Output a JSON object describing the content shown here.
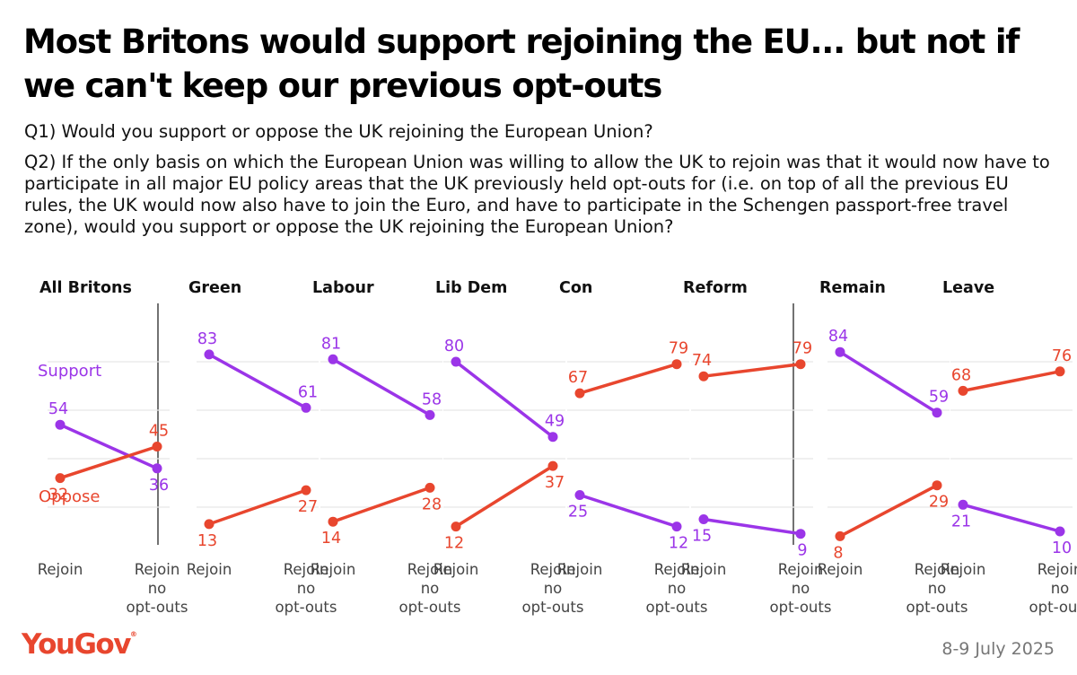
{
  "header": {
    "title": "Most Britons would support rejoining the EU... but not if we can't keep our previous opt-outs",
    "q1": "Q1) Would you support or oppose the UK rejoining the European Union?",
    "q2": "Q2) If the only basis on which the European Union was willing to allow the UK to rejoin was that it would now have to participate in all major EU policy areas that the UK previously held opt-outs for (i.e. on top of all the previous EU rules, the UK would now also have to join the Euro, and have to participate in the Schengen passport-free travel zone), would you support or oppose the UK rejoining the European Union?"
  },
  "footer": {
    "brand": "YouGov",
    "brand_mark": "®",
    "date": "8-9 July 2025"
  },
  "colors": {
    "support": "#9b35e8",
    "oppose": "#e8462e",
    "grid": "#e8e8e8",
    "divider": "#444444"
  },
  "chart_data": {
    "type": "line",
    "x": [
      "Rejoin",
      "Rejoin no opt-outs"
    ],
    "x_tick_lines": [
      [
        "Rejoin"
      ],
      [
        "Rejoin",
        "no",
        "opt-outs"
      ]
    ],
    "ylim": [
      0,
      100
    ],
    "legend": [
      "Support",
      "Oppose"
    ],
    "panels": [
      {
        "title": "All Britons",
        "series": [
          {
            "name": "Support",
            "values": [
              54,
              36
            ]
          },
          {
            "name": "Oppose",
            "values": [
              32,
              45
            ]
          }
        ]
      },
      {
        "title": "Green",
        "series": [
          {
            "name": "Support",
            "values": [
              83,
              61
            ]
          },
          {
            "name": "Oppose",
            "values": [
              13,
              27
            ]
          }
        ]
      },
      {
        "title": "Labour",
        "series": [
          {
            "name": "Support",
            "values": [
              81,
              58
            ]
          },
          {
            "name": "Oppose",
            "values": [
              14,
              28
            ]
          }
        ]
      },
      {
        "title": "Lib Dem",
        "series": [
          {
            "name": "Support",
            "values": [
              80,
              49
            ]
          },
          {
            "name": "Oppose",
            "values": [
              12,
              37
            ]
          }
        ]
      },
      {
        "title": "Con",
        "series": [
          {
            "name": "Support",
            "values": [
              25,
              12
            ]
          },
          {
            "name": "Oppose",
            "values": [
              67,
              79
            ]
          }
        ]
      },
      {
        "title": "Reform",
        "series": [
          {
            "name": "Support",
            "values": [
              15,
              9
            ]
          },
          {
            "name": "Oppose",
            "values": [
              74,
              79
            ]
          }
        ]
      },
      {
        "title": "Remain",
        "series": [
          {
            "name": "Support",
            "values": [
              84,
              59
            ]
          },
          {
            "name": "Oppose",
            "values": [
              8,
              29
            ]
          }
        ]
      },
      {
        "title": "Leave",
        "series": [
          {
            "name": "Support",
            "values": [
              21,
              10
            ]
          },
          {
            "name": "Oppose",
            "values": [
              68,
              76
            ]
          }
        ]
      }
    ]
  }
}
